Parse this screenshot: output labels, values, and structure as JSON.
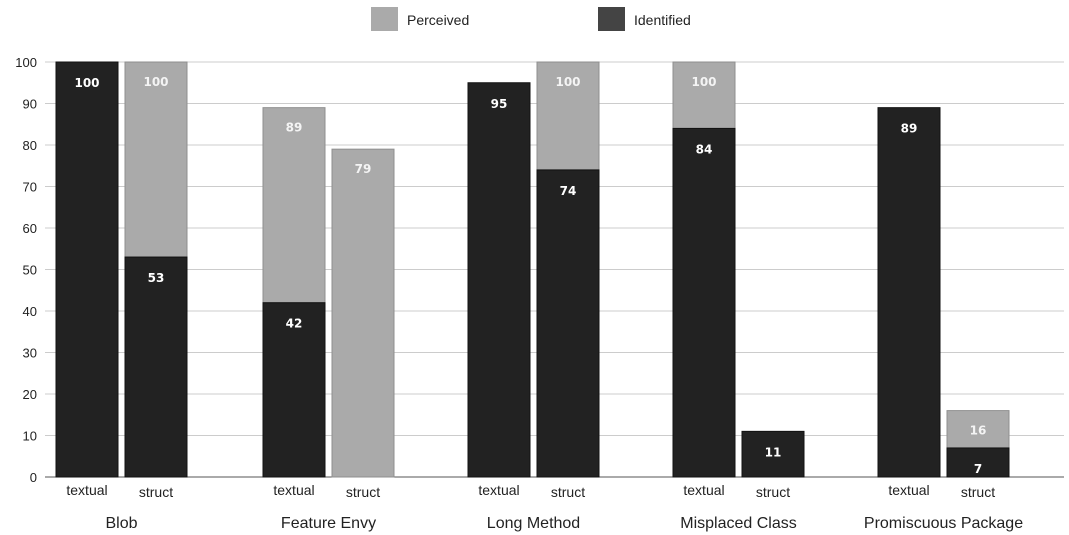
{
  "chart_data": {
    "type": "bar",
    "title": "",
    "xlabel": "",
    "ylabel": "",
    "ylim": [
      0,
      100
    ],
    "yticks": [
      0,
      10,
      20,
      30,
      40,
      50,
      60,
      70,
      80,
      90,
      100
    ],
    "grid": true,
    "legend_position": "top-center",
    "legend": [
      {
        "name": "Perceived",
        "color": "#aaaaaa"
      },
      {
        "name": "Identified",
        "color": "#444444"
      }
    ],
    "colors": {
      "perceived": "#aaaaaa",
      "identified": "#222222",
      "grid": "#cccccc",
      "axis": "#555555"
    },
    "groups": [
      {
        "name": "Blob",
        "bars": [
          {
            "label": "textual",
            "identified": 100,
            "perceived": null
          },
          {
            "label": "struct",
            "identified": 53,
            "perceived": 100
          }
        ]
      },
      {
        "name": "Feature Envy",
        "bars": [
          {
            "label": "textual",
            "identified": 42,
            "perceived": 89
          },
          {
            "label": "struct",
            "identified": null,
            "perceived": 79
          }
        ]
      },
      {
        "name": "Long Method",
        "bars": [
          {
            "label": "textual",
            "identified": 95,
            "perceived": null
          },
          {
            "label": "struct",
            "identified": 74,
            "perceived": 100
          }
        ]
      },
      {
        "name": "Misplaced Class",
        "bars": [
          {
            "label": "textual",
            "identified": 84,
            "perceived": 100
          },
          {
            "label": "struct",
            "identified": 11,
            "perceived": null
          }
        ]
      },
      {
        "name": "Promiscuous Package",
        "bars": [
          {
            "label": "textual",
            "identified": 89,
            "perceived": null
          },
          {
            "label": "struct",
            "identified": 7,
            "perceived": 16
          }
        ]
      }
    ]
  }
}
